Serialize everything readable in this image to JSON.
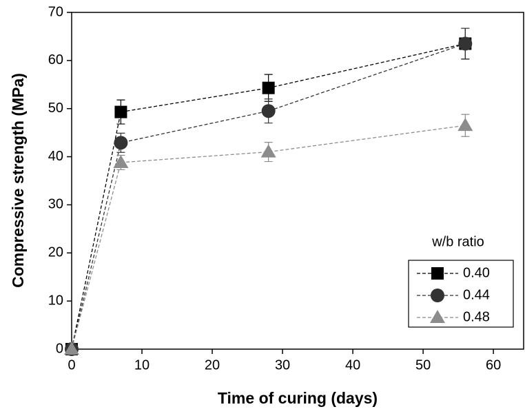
{
  "chart_data": {
    "type": "line",
    "x_label": "Time of curing (days)",
    "y_label": "Compressive strength (MPa)",
    "x": [
      0,
      7,
      28,
      56
    ],
    "series": [
      {
        "name": "0.40",
        "color": "#000000",
        "marker": "square",
        "values": [
          0,
          49.3,
          54.3,
          63.5
        ],
        "errors": [
          0,
          2.5,
          2.8,
          3.2
        ]
      },
      {
        "name": "0.44",
        "color": "#333333",
        "marker": "circle",
        "values": [
          0,
          42.9,
          49.5,
          63.5
        ],
        "errors": [
          0,
          2.0,
          2.5,
          3.2
        ]
      },
      {
        "name": "0.48",
        "color": "#8c8c8c",
        "marker": "triangle",
        "values": [
          0,
          38.8,
          41,
          46.5
        ],
        "errors": [
          0,
          1.5,
          2.0,
          2.3
        ]
      }
    ],
    "legend_title": "w/b ratio",
    "legend": "lower right",
    "xlim": [
      0,
      64.3
    ],
    "xticks": [
      0,
      10,
      20,
      30,
      40,
      50,
      60
    ],
    "ylim": [
      0,
      70
    ],
    "yticks": [
      0,
      10,
      20,
      30,
      40,
      50,
      60,
      70
    ]
  }
}
